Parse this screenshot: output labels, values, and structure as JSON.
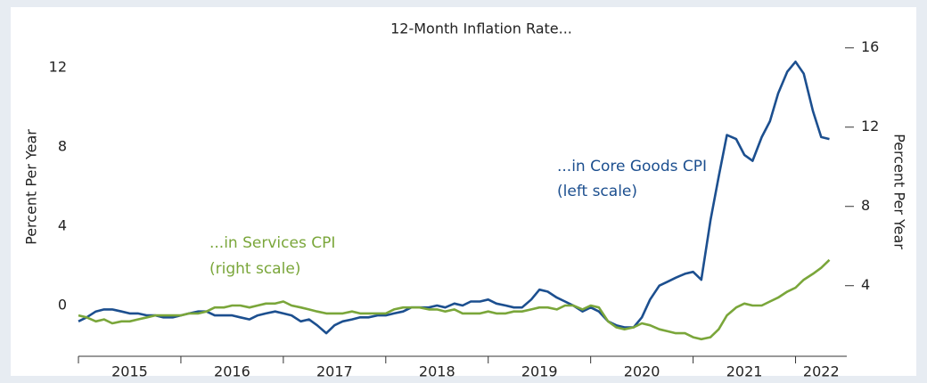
{
  "chart_data": {
    "type": "line",
    "title": "12-Month Inflation Rate...",
    "y_label": "Percent Per Year",
    "y2_label": "Percent Per Year",
    "annotations": [
      "...in Core Goods CPI",
      "(left scale)",
      "...in Services CPI",
      "(right scale)"
    ],
    "x": [
      2015.0,
      2015.08,
      2015.17,
      2015.25,
      2015.33,
      2015.42,
      2015.5,
      2015.58,
      2015.67,
      2015.75,
      2015.83,
      2015.92,
      2016.0,
      2016.08,
      2016.17,
      2016.25,
      2016.33,
      2016.42,
      2016.5,
      2016.58,
      2016.67,
      2016.75,
      2016.83,
      2016.92,
      2017.0,
      2017.08,
      2017.17,
      2017.25,
      2017.33,
      2017.42,
      2017.5,
      2017.58,
      2017.67,
      2017.75,
      2017.83,
      2017.92,
      2018.0,
      2018.08,
      2018.17,
      2018.25,
      2018.33,
      2018.42,
      2018.5,
      2018.58,
      2018.67,
      2018.75,
      2018.83,
      2018.92,
      2019.0,
      2019.08,
      2019.17,
      2019.25,
      2019.33,
      2019.42,
      2019.5,
      2019.58,
      2019.67,
      2019.75,
      2019.83,
      2019.92,
      2020.0,
      2020.08,
      2020.17,
      2020.25,
      2020.33,
      2020.42,
      2020.5,
      2020.58,
      2020.67,
      2020.75,
      2020.83,
      2020.92,
      2021.0,
      2021.08,
      2021.17,
      2021.25,
      2021.33,
      2021.42,
      2021.5,
      2021.58,
      2021.67,
      2021.75,
      2021.83,
      2021.92,
      2022.0,
      2022.08,
      2022.17,
      2022.25,
      2022.33
    ],
    "series": [
      {
        "name": "Core Goods CPI",
        "color": "#1c4f8f",
        "axis": "y",
        "values": [
          -0.8,
          -0.6,
          -0.3,
          -0.2,
          -0.2,
          -0.3,
          -0.4,
          -0.4,
          -0.5,
          -0.5,
          -0.6,
          -0.6,
          -0.5,
          -0.4,
          -0.3,
          -0.3,
          -0.5,
          -0.5,
          -0.5,
          -0.6,
          -0.7,
          -0.5,
          -0.4,
          -0.3,
          -0.4,
          -0.5,
          -0.8,
          -0.7,
          -1.0,
          -1.4,
          -1.0,
          -0.8,
          -0.7,
          -0.6,
          -0.6,
          -0.5,
          -0.5,
          -0.4,
          -0.3,
          -0.1,
          -0.1,
          -0.1,
          0.0,
          -0.1,
          0.1,
          0.0,
          0.2,
          0.2,
          0.3,
          0.1,
          0.0,
          -0.1,
          -0.1,
          0.3,
          0.8,
          0.7,
          0.4,
          0.2,
          0.0,
          -0.3,
          -0.1,
          -0.3,
          -0.8,
          -1.0,
          -1.1,
          -1.1,
          -0.6,
          0.3,
          1.0,
          1.2,
          1.4,
          1.6,
          1.7,
          1.3,
          4.3,
          6.5,
          8.6,
          8.4,
          7.6,
          7.3,
          8.5,
          9.3,
          10.7,
          11.8,
          12.3,
          11.7,
          9.8,
          8.5,
          8.4
        ]
      },
      {
        "name": "Services CPI",
        "color": "#7aa63a",
        "axis": "y2",
        "values": [
          2.5,
          2.4,
          2.2,
          2.3,
          2.1,
          2.2,
          2.2,
          2.3,
          2.4,
          2.5,
          2.5,
          2.5,
          2.5,
          2.6,
          2.6,
          2.7,
          2.9,
          2.9,
          3.0,
          3.0,
          2.9,
          3.0,
          3.1,
          3.1,
          3.2,
          3.0,
          2.9,
          2.8,
          2.7,
          2.6,
          2.6,
          2.6,
          2.7,
          2.6,
          2.6,
          2.6,
          2.6,
          2.8,
          2.9,
          2.9,
          2.9,
          2.8,
          2.8,
          2.7,
          2.8,
          2.6,
          2.6,
          2.6,
          2.7,
          2.6,
          2.6,
          2.7,
          2.7,
          2.8,
          2.9,
          2.9,
          2.8,
          3.0,
          3.0,
          2.8,
          3.0,
          2.9,
          2.2,
          1.9,
          1.8,
          1.9,
          2.1,
          2.0,
          1.8,
          1.7,
          1.6,
          1.6,
          1.4,
          1.3,
          1.4,
          1.8,
          2.5,
          2.9,
          3.1,
          3.0,
          3.0,
          3.2,
          3.4,
          3.7,
          3.9,
          4.3,
          4.6,
          4.9,
          5.3
        ]
      }
    ],
    "xlim": [
      2015,
      2022.5
    ],
    "xticks": [
      2015,
      2016,
      2017,
      2018,
      2019,
      2020,
      2021,
      2022
    ],
    "ylim": [
      -2.5,
      14
    ],
    "yticks": [
      0,
      4,
      8,
      12
    ],
    "y2lim": [
      0.5,
      17
    ],
    "y2ticks": [
      4,
      8,
      12,
      16
    ],
    "grid": false
  }
}
